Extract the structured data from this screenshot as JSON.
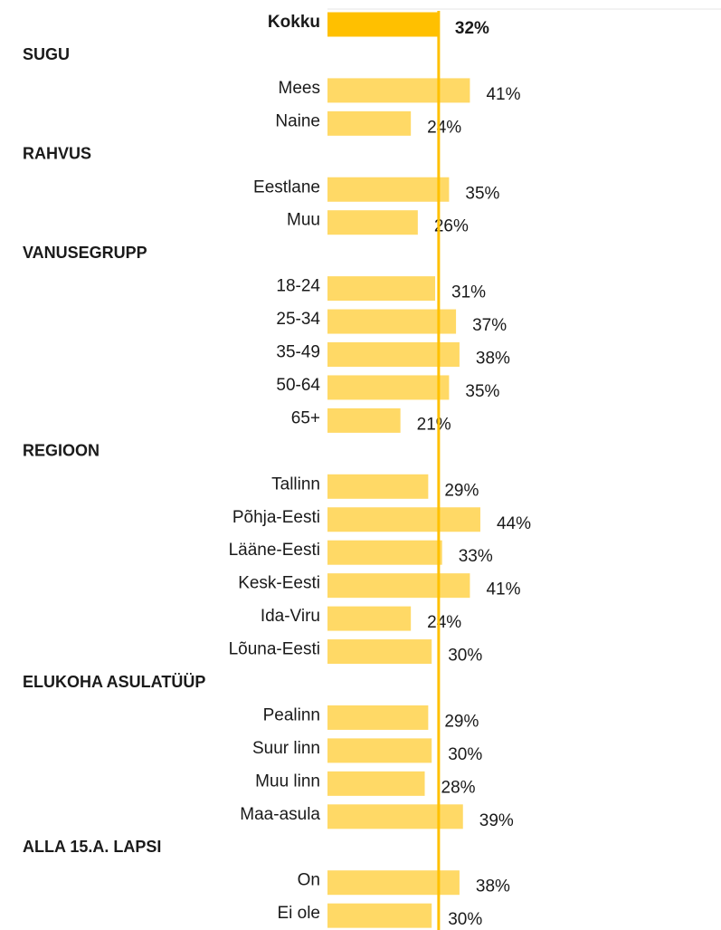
{
  "chart_data": {
    "type": "bar",
    "color": "#ffd966",
    "total_color": "#ffc000",
    "total": {
      "category": "Kokku",
      "value": 32,
      "value_label": "32%"
    },
    "groups": [
      {
        "name": "SUGU",
        "categories": [
          "Mees",
          "Naine"
        ],
        "values": [
          41,
          24
        ],
        "value_labels": [
          "41%",
          "24%"
        ]
      },
      {
        "name": "RAHVUS",
        "categories": [
          "Eestlane",
          "Muu"
        ],
        "values": [
          35,
          26
        ],
        "value_labels": [
          "35%",
          "26%"
        ]
      },
      {
        "name": "VANUSEGRUPP",
        "categories": [
          "18-24",
          "25-34",
          "35-49",
          "50-64",
          "65+"
        ],
        "values": [
          31,
          37,
          38,
          35,
          21
        ],
        "value_labels": [
          "31%",
          "37%",
          "38%",
          "35%",
          "21%"
        ]
      },
      {
        "name": "REGIOON",
        "categories": [
          "Tallinn",
          "Põhja-Eesti",
          "Lääne-Eesti",
          "Kesk-Eesti",
          "Ida-Viru",
          "Lõuna-Eesti"
        ],
        "values": [
          29,
          44,
          33,
          41,
          24,
          30
        ],
        "value_labels": [
          "29%",
          "44%",
          "33%",
          "41%",
          "24%",
          "30%"
        ]
      },
      {
        "name": "ELUKOHA ASULATÜÜP",
        "categories": [
          "Pealinn",
          "Suur linn",
          "Muu linn",
          "Maa-asula"
        ],
        "values": [
          29,
          30,
          28,
          39
        ],
        "value_labels": [
          "29%",
          "30%",
          "28%",
          "39%"
        ]
      },
      {
        "name": "ALLA 15.A. LAPSI",
        "categories": [
          "On",
          "Ei ole"
        ],
        "values": [
          38,
          30
        ],
        "value_labels": [
          "38%",
          "30%"
        ]
      }
    ]
  }
}
